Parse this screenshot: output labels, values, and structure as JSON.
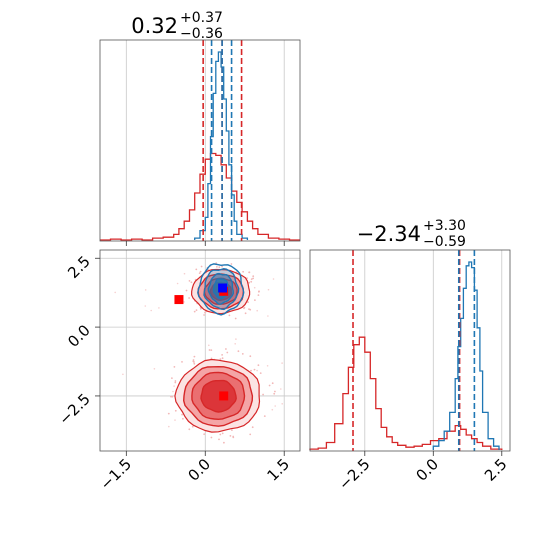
{
  "colors": {
    "blue": "#1f77b4",
    "red": "#d62728",
    "grid": "#c8c8c8"
  },
  "chart_data": {
    "type": "corner",
    "parameters": [
      "p1",
      "p2"
    ],
    "p1": {
      "range": [
        -2.0,
        1.8
      ],
      "ticks": [
        -1.5,
        0.0,
        1.5
      ],
      "tick_labels": [
        "−1.5",
        "0.0",
        "1.5"
      ],
      "title": {
        "value": "0.32",
        "plus": "+0.37",
        "minus": "−0.36"
      },
      "quantiles_blue": [
        0.12,
        0.32,
        0.5
      ],
      "quantiles_red": [
        -0.04,
        0.32,
        0.69
      ]
    },
    "p2": {
      "range": [
        -4.5,
        2.8
      ],
      "ticks": [
        -2.5,
        0.0,
        2.5
      ],
      "tick_labels": [
        "−2.5",
        "0.0",
        "2.5"
      ],
      "title": {
        "value": "−2.34",
        "plus": "+3.30",
        "minus": "−0.59"
      },
      "quantiles_blue": [
        0.93,
        1.5
      ],
      "quantiles_red": [
        -2.93,
        0.96
      ]
    },
    "hist_p1": {
      "blue": {
        "edges": [
          -0.2,
          -0.1,
          0.0,
          0.05,
          0.1,
          0.15,
          0.2,
          0.25,
          0.3,
          0.35,
          0.4,
          0.45,
          0.5,
          0.55,
          0.6,
          0.7,
          0.8
        ],
        "heights": [
          0.01,
          0.05,
          0.12,
          0.3,
          0.55,
          0.78,
          0.95,
          1.0,
          0.92,
          0.75,
          0.58,
          0.4,
          0.24,
          0.1,
          0.03,
          0.01
        ]
      },
      "red": {
        "edges": [
          -2.0,
          -1.8,
          -1.6,
          -1.4,
          -1.2,
          -1.0,
          -0.8,
          -0.6,
          -0.5,
          -0.4,
          -0.3,
          -0.2,
          -0.1,
          0.0,
          0.1,
          0.2,
          0.3,
          0.4,
          0.5,
          0.6,
          0.7,
          0.8,
          0.9,
          1.0,
          1.2,
          1.4,
          1.6,
          1.8
        ],
        "heights": [
          0.0,
          0.005,
          0.0,
          0.005,
          0.0,
          0.01,
          0.015,
          0.03,
          0.06,
          0.1,
          0.16,
          0.25,
          0.35,
          0.43,
          0.46,
          0.45,
          0.4,
          0.33,
          0.26,
          0.2,
          0.15,
          0.1,
          0.06,
          0.03,
          0.01,
          0.005,
          0.0
        ]
      }
    },
    "hist_p2": {
      "blue": {
        "edges": [
          0.0,
          0.2,
          0.4,
          0.6,
          0.8,
          0.9,
          1.0,
          1.1,
          1.2,
          1.3,
          1.4,
          1.5,
          1.6,
          1.7,
          1.8,
          2.0,
          2.2,
          2.4
        ],
        "heights": [
          0.02,
          0.05,
          0.1,
          0.2,
          0.38,
          0.55,
          0.7,
          0.86,
          0.98,
          1.0,
          0.97,
          0.85,
          0.65,
          0.42,
          0.2,
          0.06,
          0.02
        ]
      },
      "red": {
        "edges": [
          -4.5,
          -4.2,
          -3.9,
          -3.6,
          -3.3,
          -3.1,
          -2.9,
          -2.7,
          -2.5,
          -2.3,
          -2.1,
          -1.9,
          -1.7,
          -1.5,
          -1.3,
          -1.0,
          -0.7,
          -0.4,
          -0.1,
          0.2,
          0.5,
          0.8,
          1.0,
          1.2,
          1.4,
          1.6,
          1.8,
          2.1,
          2.5
        ],
        "heights": [
          0.005,
          0.01,
          0.04,
          0.14,
          0.3,
          0.44,
          0.56,
          0.6,
          0.52,
          0.38,
          0.22,
          0.12,
          0.07,
          0.04,
          0.025,
          0.015,
          0.02,
          0.03,
          0.05,
          0.06,
          0.1,
          0.13,
          0.11,
          0.08,
          0.06,
          0.04,
          0.02,
          0.005
        ]
      }
    },
    "scatter_2d": {
      "red_modes": [
        {
          "x": 0.3,
          "y": 1.3,
          "sx": [
            0.55,
            0.43,
            0.31,
            0.2
          ],
          "sy": [
            0.8,
            0.63,
            0.47,
            0.32
          ]
        },
        {
          "x": 0.25,
          "y": -2.5,
          "sx": [
            0.8,
            0.65,
            0.5,
            0.33
          ],
          "sy": [
            1.3,
            1.08,
            0.85,
            0.57
          ]
        }
      ],
      "blue_mode": {
        "x": 0.3,
        "y": 1.4,
        "sx": [
          0.42,
          0.32,
          0.23,
          0.14
        ],
        "sy": [
          0.9,
          0.72,
          0.54,
          0.36
        ]
      },
      "markers_red": [
        {
          "x": -0.5,
          "y": 1.0
        },
        {
          "x": 0.35,
          "y": 1.3
        },
        {
          "x": 0.35,
          "y": -2.5
        }
      ],
      "marker_blue": {
        "x": 0.33,
        "y": 1.42
      }
    }
  }
}
